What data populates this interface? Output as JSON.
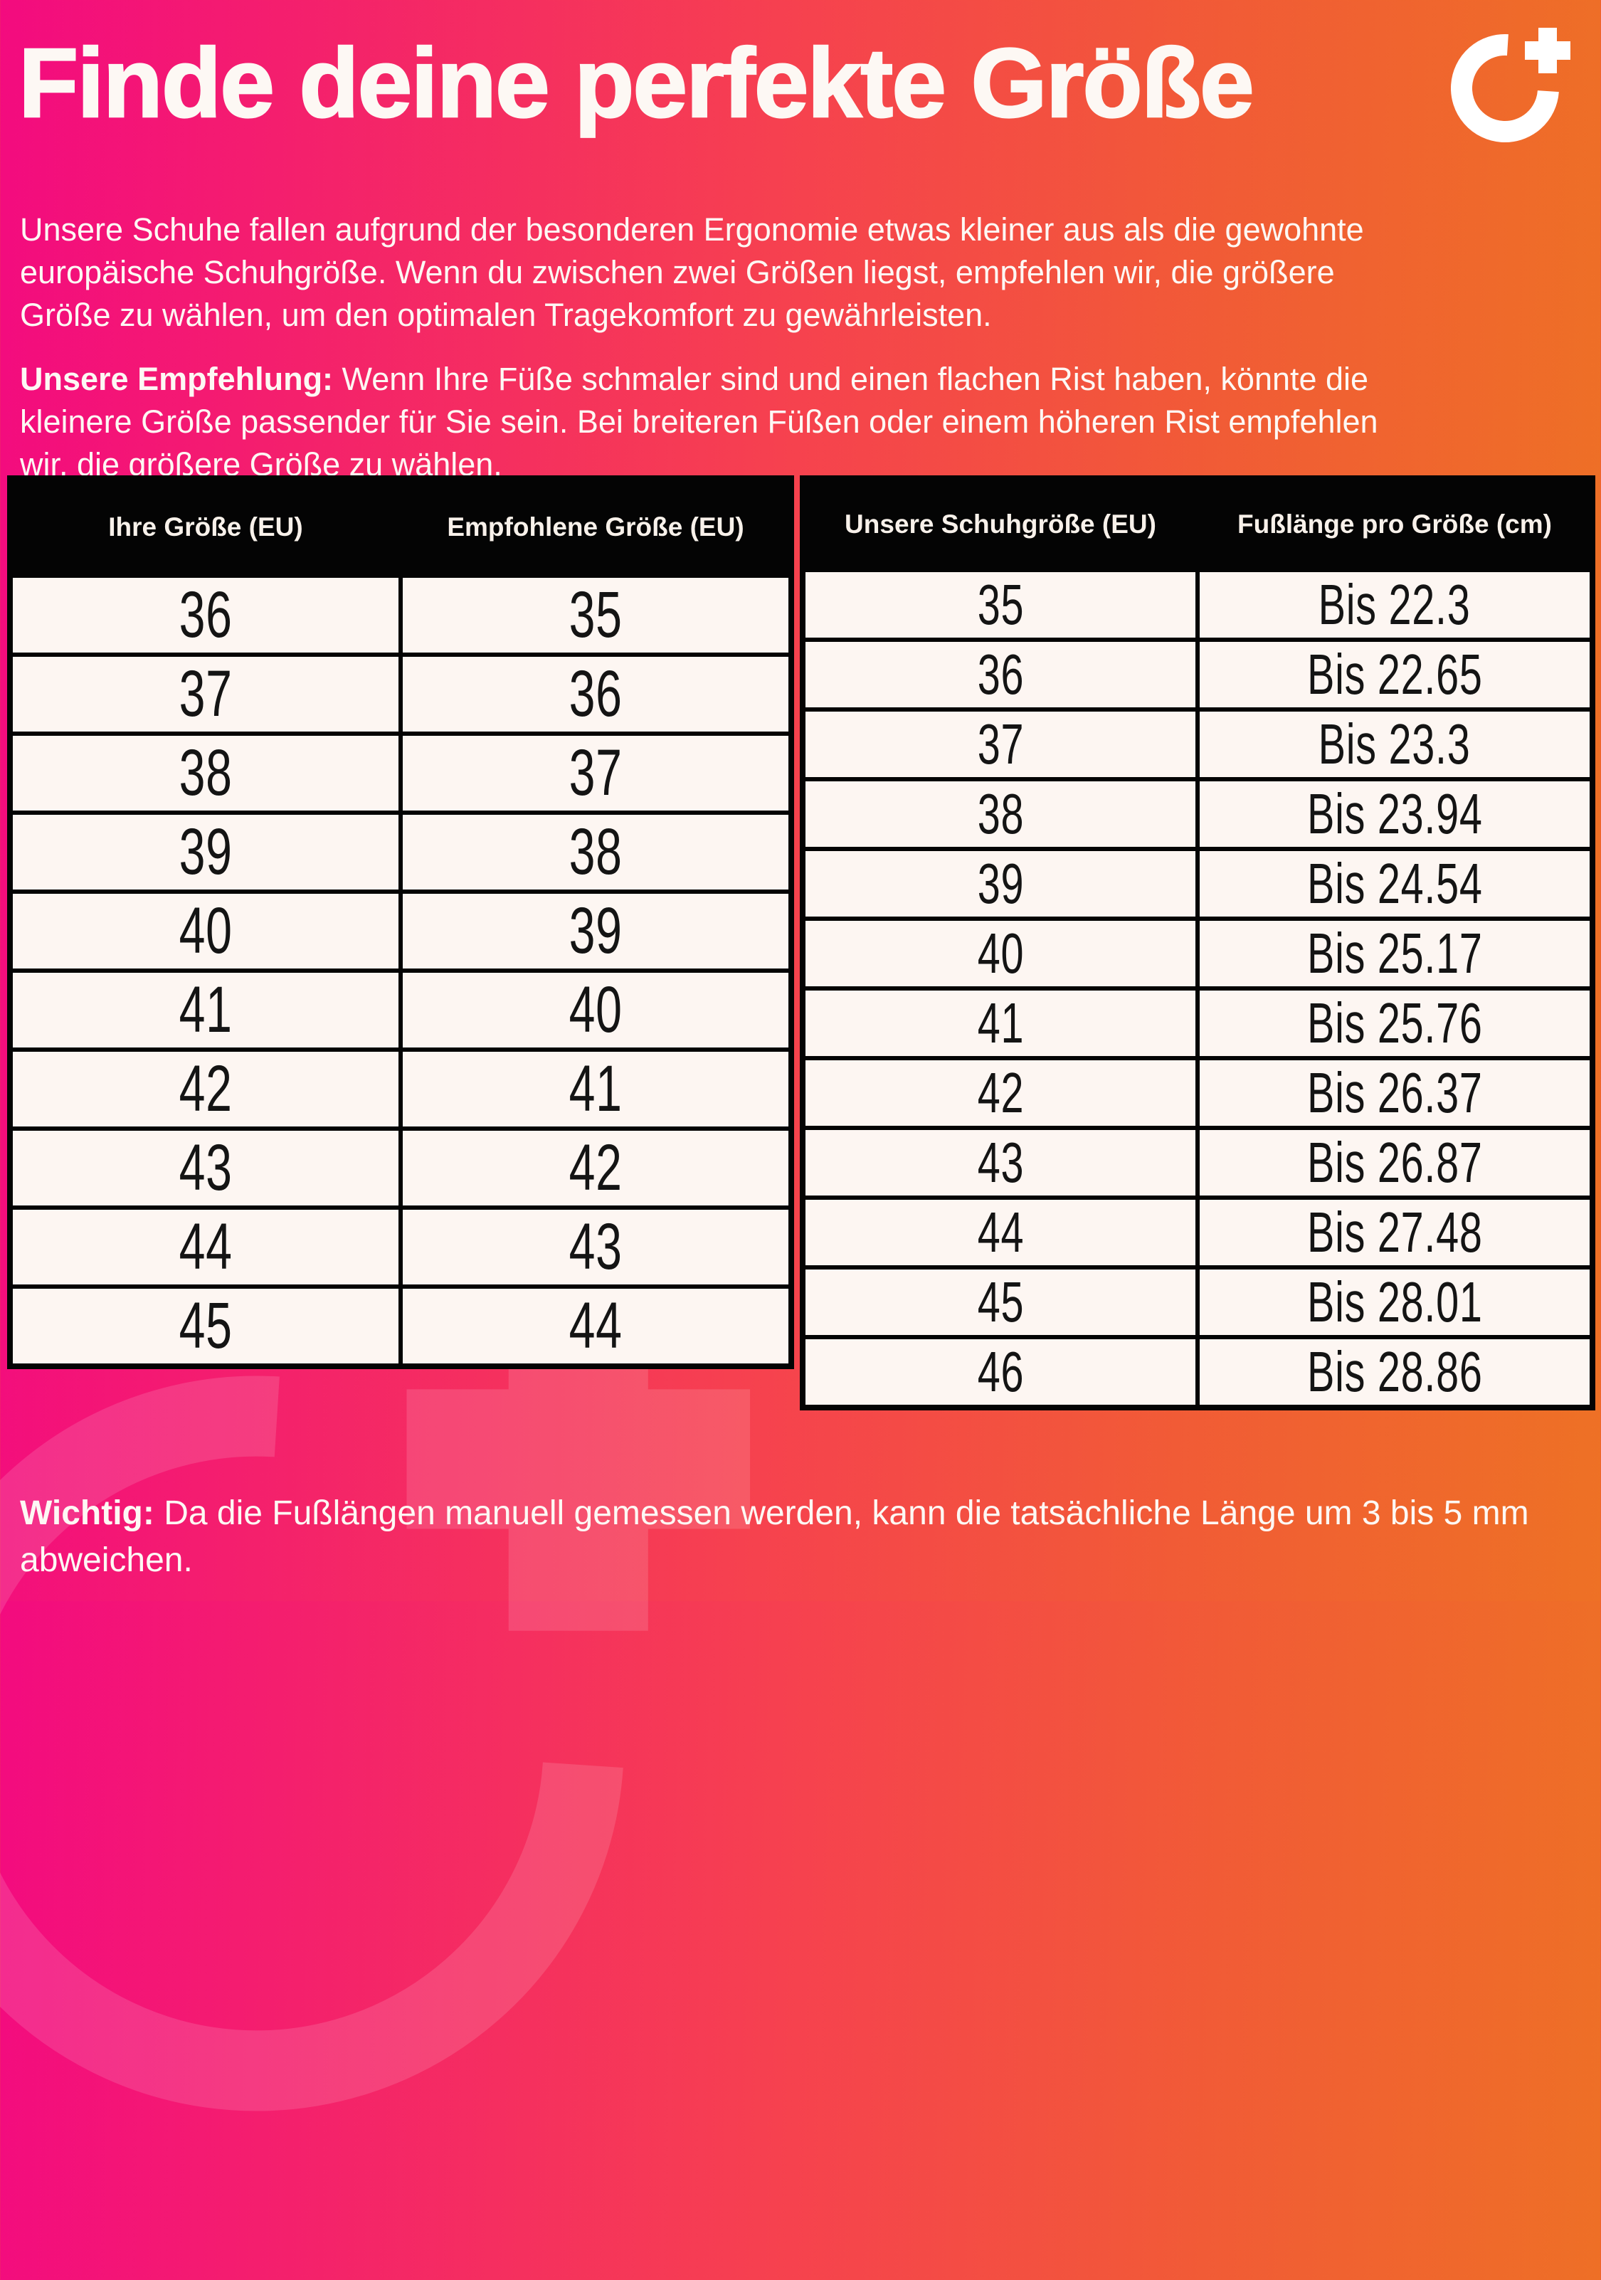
{
  "header": {
    "title": "Finde deine perfekte Größe",
    "intro_lines": [
      "Unsere Schuhe fallen aufgrund der besonderen Ergonomie etwas kleiner aus als die gewohnte",
      "europäische Schuhgröße. Wenn du zwischen zwei Größen liegst, empfehlen wir, die größere",
      "Größe zu wählen, um den optimalen Tragekomfort zu gewährleisten."
    ],
    "recommendation": {
      "label": "Unsere Empfehlung:",
      "lines": [
        " Wenn Ihre Füße schmaler sind und einen flachen Rist haben, könnte die",
        "kleinere Größe passender für Sie sein. Bei breiteren Füßen oder einem höheren Rist empfehlen",
        "wir, die größere Größe zu wählen."
      ]
    }
  },
  "logo": {
    "name": "o-plus-logo"
  },
  "tables": {
    "size_conversion": {
      "headers": [
        "Ihre Größe (EU)",
        "Empfohlene Größe (EU)"
      ],
      "rows": [
        [
          "36",
          "35"
        ],
        [
          "37",
          "36"
        ],
        [
          "38",
          "37"
        ],
        [
          "39",
          "38"
        ],
        [
          "40",
          "39"
        ],
        [
          "41",
          "40"
        ],
        [
          "42",
          "41"
        ],
        [
          "43",
          "42"
        ],
        [
          "44",
          "43"
        ],
        [
          "45",
          "44"
        ]
      ]
    },
    "foot_length": {
      "headers": [
        "Unsere Schuhgröße (EU)",
        "Fußlänge pro Größe (cm)"
      ],
      "rows": [
        [
          "35",
          "Bis 22.3"
        ],
        [
          "36",
          "Bis 22.65"
        ],
        [
          "37",
          "Bis 23.3"
        ],
        [
          "38",
          "Bis 23.94"
        ],
        [
          "39",
          "Bis 24.54"
        ],
        [
          "40",
          "Bis 25.17"
        ],
        [
          "41",
          "Bis 25.76"
        ],
        [
          "42",
          "Bis 26.37"
        ],
        [
          "43",
          "Bis 26.87"
        ],
        [
          "44",
          "Bis 27.48"
        ],
        [
          "45",
          "Bis 28.01"
        ],
        [
          "46",
          "Bis 28.86"
        ]
      ]
    }
  },
  "footnote": {
    "label": "Wichtig:",
    "lines": [
      " Da die Fußlängen manuell gemessen werden, kann die tatsächliche Länge um 3 bis 5 mm",
      "abweichen."
    ]
  },
  "colors": {
    "gradient_start": "#f30b7f",
    "gradient_mid": "#f6414f",
    "gradient_end": "#ee7125",
    "table_header_bg": "#040404",
    "table_cell_bg": "#fdf6f2",
    "text_light": "#fdf8f4",
    "text_dark": "#141414"
  }
}
